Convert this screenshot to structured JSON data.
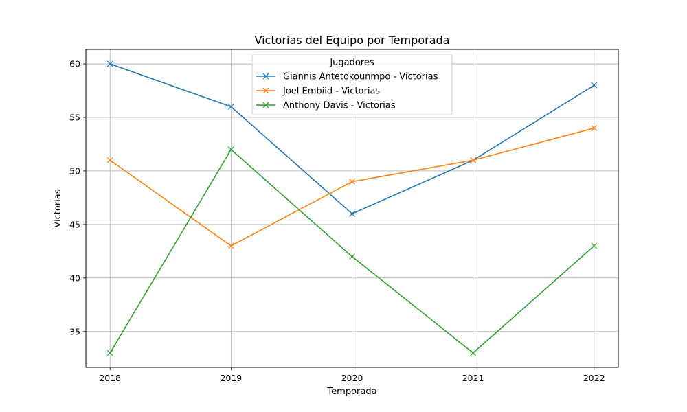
{
  "chart_data": {
    "type": "line",
    "title": "Victorias del Equipo por Temporada",
    "xlabel": "Temporada",
    "ylabel": "Victorias",
    "x": [
      2018,
      2019,
      2020,
      2021,
      2022
    ],
    "x_tick_labels": [
      "2018",
      "2019",
      "2020",
      "2021",
      "2022"
    ],
    "xlim": [
      2017.8,
      2022.2
    ],
    "ylim": [
      31.65,
      61.35
    ],
    "y_ticks": [
      35,
      40,
      45,
      50,
      55,
      60
    ],
    "y_tick_labels": [
      "35",
      "40",
      "45",
      "50",
      "55",
      "60"
    ],
    "grid": true,
    "marker": "x",
    "legend": {
      "title": "Jugadores",
      "placement": "top-center"
    },
    "series": [
      {
        "name": "Giannis Antetokounmpo - Victorias",
        "color": "#1f77b4",
        "values": [
          60,
          56,
          46,
          51,
          58
        ]
      },
      {
        "name": "Joel Embiid - Victorias",
        "color": "#ff7f0e",
        "values": [
          51,
          43,
          49,
          51,
          54
        ]
      },
      {
        "name": "Anthony Davis - Victorias",
        "color": "#2ca02c",
        "values": [
          33,
          52,
          42,
          33,
          43
        ]
      }
    ]
  }
}
